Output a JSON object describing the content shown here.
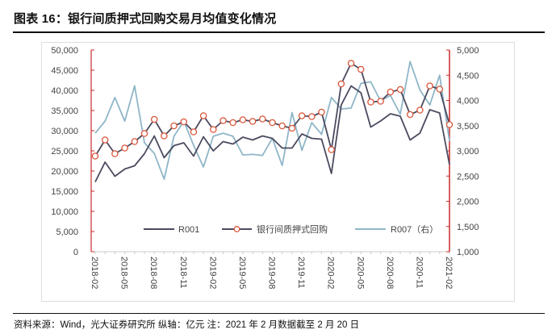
{
  "title": "图表 16：银行间质押式回购交易月均值变化情况",
  "footer": "资料来源：Wind，光大证券研究所 纵轴：亿元   注：2021 年 2 月数据截至 2 月 20 日",
  "chart_data": {
    "type": "line",
    "title": "图表 16：银行间质押式回购交易月均值变化情况",
    "x": [
      "2018-02",
      "2018-03",
      "2018-04",
      "2018-05",
      "2018-06",
      "2018-07",
      "2018-08",
      "2018-09",
      "2018-10",
      "2018-11",
      "2018-12",
      "2019-01",
      "2019-02",
      "2019-03",
      "2019-04",
      "2019-05",
      "2019-06",
      "2019-07",
      "2019-08",
      "2019-09",
      "2019-10",
      "2019-11",
      "2019-12",
      "2020-01",
      "2020-02",
      "2020-03",
      "2020-04",
      "2020-05",
      "2020-06",
      "2020-07",
      "2020-08",
      "2020-09",
      "2020-10",
      "2020-11",
      "2020-12",
      "2021-01",
      "2021-02"
    ],
    "x_tick_labels": [
      "2018-02",
      "2018-05",
      "2018-08",
      "2018-11",
      "2019-02",
      "2019-05",
      "2019-08",
      "2019-11",
      "2020-02",
      "2020-05",
      "2020-08",
      "2020-11",
      "2021-02"
    ],
    "y_left": {
      "range": [
        0,
        50000
      ],
      "ticks": [
        "0",
        "5,000",
        "10,000",
        "15,000",
        "20,000",
        "25,000",
        "30,000",
        "35,000",
        "40,000",
        "45,000",
        "50,000"
      ]
    },
    "y_right": {
      "range": [
        1000,
        5000
      ],
      "ticks": [
        "1,000",
        "1,500",
        "2,000",
        "2,500",
        "3,000",
        "3,500",
        "4,000",
        "4,500",
        "5,000"
      ]
    },
    "grid": false,
    "legend_placement": "bottom-inside",
    "series": [
      {
        "name": "R001",
        "axis": "left",
        "color": "#4b4b60",
        "marker": "none",
        "values": [
          17300,
          22200,
          18700,
          20500,
          21300,
          24300,
          28700,
          23300,
          26300,
          27000,
          23700,
          28500,
          25000,
          27300,
          26700,
          28400,
          27700,
          28700,
          28100,
          25700,
          25700,
          29200,
          28100,
          27900,
          19400,
          36400,
          41100,
          39400,
          30900,
          32400,
          34200,
          33600,
          27700,
          29400,
          35200,
          34400,
          21600
        ]
      },
      {
        "name": "银行间质押式回购",
        "axis": "left",
        "color": "#4b4b60",
        "marker_color": "#d9573b",
        "marker": "circle",
        "values": [
          23700,
          27700,
          24300,
          25700,
          27300,
          29300,
          32800,
          28700,
          31200,
          32200,
          29700,
          33700,
          30300,
          32500,
          32000,
          32700,
          32300,
          32900,
          32000,
          31200,
          30600,
          33700,
          33500,
          34600,
          25300,
          41600,
          46700,
          45200,
          37100,
          37300,
          39600,
          40200,
          34000,
          35100,
          41100,
          40300,
          31500
        ]
      },
      {
        "name": "R007（右）",
        "axis": "right",
        "color": "#8fb6c8",
        "marker": "none",
        "values": [
          3350,
          3590,
          4060,
          3590,
          4290,
          3160,
          2950,
          2440,
          3290,
          3590,
          3110,
          2680,
          3290,
          3350,
          3290,
          2920,
          2930,
          2910,
          3250,
          2710,
          3760,
          3010,
          3560,
          3330,
          4060,
          3830,
          3850,
          4340,
          4370,
          3990,
          4100,
          3730,
          4770,
          4210,
          3910,
          4500,
          3190
        ]
      }
    ],
    "axis_color": "#cc2a2a"
  }
}
